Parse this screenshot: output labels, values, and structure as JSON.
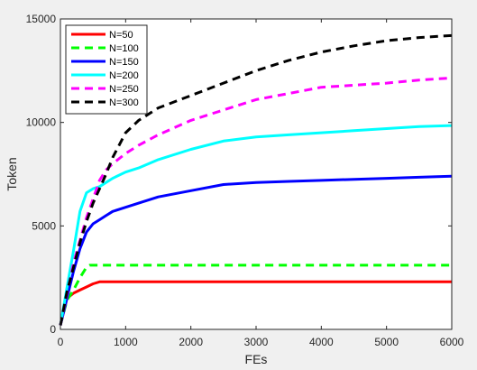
{
  "chart_data": {
    "type": "line",
    "title": "",
    "xlabel": "FEs",
    "ylabel": "Token",
    "xlim": [
      0,
      6000
    ],
    "ylim": [
      0,
      15000
    ],
    "xticks": [
      0,
      1000,
      2000,
      3000,
      4000,
      5000,
      6000
    ],
    "yticks": [
      0,
      5000,
      10000,
      15000
    ],
    "xtick_labels": [
      "0",
      "1000",
      "2000",
      "3000",
      "4000",
      "5000",
      "6000"
    ],
    "ytick_labels": [
      "0",
      "5000",
      "10000",
      "15000"
    ],
    "grid": false,
    "legend_position": "top-left",
    "series": [
      {
        "name": "N=50",
        "color": "#ff0000",
        "dash": "solid",
        "x": [
          0,
          100,
          200,
          300,
          400,
          500,
          600,
          700,
          1000,
          2000,
          3000,
          4000,
          5000,
          6000
        ],
        "y": [
          200,
          1500,
          1750,
          1900,
          2050,
          2200,
          2300,
          2300,
          2300,
          2300,
          2300,
          2300,
          2300,
          2300
        ]
      },
      {
        "name": "N=100",
        "color": "#00ff00",
        "dash": "dashed",
        "x": [
          0,
          100,
          200,
          300,
          400,
          450,
          500,
          600,
          1000,
          2000,
          3000,
          4000,
          5000,
          6000
        ],
        "y": [
          200,
          1400,
          1900,
          2500,
          3000,
          3100,
          3100,
          3100,
          3100,
          3100,
          3100,
          3100,
          3100,
          3100
        ]
      },
      {
        "name": "N=150",
        "color": "#0000ff",
        "dash": "solid",
        "x": [
          0,
          100,
          200,
          300,
          400,
          500,
          600,
          700,
          800,
          1000,
          1200,
          1500,
          2000,
          2500,
          3000,
          3500,
          4000,
          4500,
          5000,
          5500,
          6000
        ],
        "y": [
          200,
          1500,
          2800,
          3900,
          4700,
          5100,
          5300,
          5500,
          5700,
          5900,
          6100,
          6400,
          6700,
          7000,
          7100,
          7150,
          7200,
          7250,
          7300,
          7350,
          7400
        ]
      },
      {
        "name": "N=200",
        "color": "#00ffff",
        "dash": "solid",
        "x": [
          0,
          100,
          200,
          300,
          400,
          500,
          550,
          600,
          700,
          800,
          1000,
          1200,
          1500,
          2000,
          2500,
          3000,
          3500,
          4000,
          4500,
          5000,
          5500,
          6000
        ],
        "y": [
          200,
          2000,
          3800,
          5700,
          6600,
          6800,
          6850,
          6900,
          7100,
          7300,
          7600,
          7800,
          8200,
          8700,
          9100,
          9300,
          9400,
          9500,
          9600,
          9700,
          9800,
          9850
        ]
      },
      {
        "name": "N=250",
        "color": "#ff00ff",
        "dash": "dashed",
        "x": [
          0,
          100,
          200,
          300,
          400,
          500,
          600,
          700,
          800,
          1000,
          1200,
          1500,
          2000,
          2500,
          3000,
          3500,
          4000,
          4500,
          5000,
          5500,
          6000
        ],
        "y": [
          200,
          1700,
          3200,
          4300,
          5400,
          6300,
          7200,
          7700,
          8000,
          8500,
          8900,
          9400,
          10100,
          10600,
          11100,
          11400,
          11700,
          11800,
          11900,
          12050,
          12150
        ]
      },
      {
        "name": "N=300",
        "color": "#000000",
        "dash": "dashed",
        "x": [
          0,
          100,
          200,
          300,
          400,
          500,
          600,
          700,
          800,
          1000,
          1200,
          1500,
          2000,
          2500,
          3000,
          3500,
          4000,
          4500,
          5000,
          5500,
          6000
        ],
        "y": [
          200,
          1800,
          3000,
          4200,
          5200,
          6100,
          6800,
          7500,
          8300,
          9500,
          10100,
          10700,
          11300,
          11900,
          12500,
          13000,
          13400,
          13700,
          13950,
          14100,
          14200
        ]
      }
    ]
  }
}
